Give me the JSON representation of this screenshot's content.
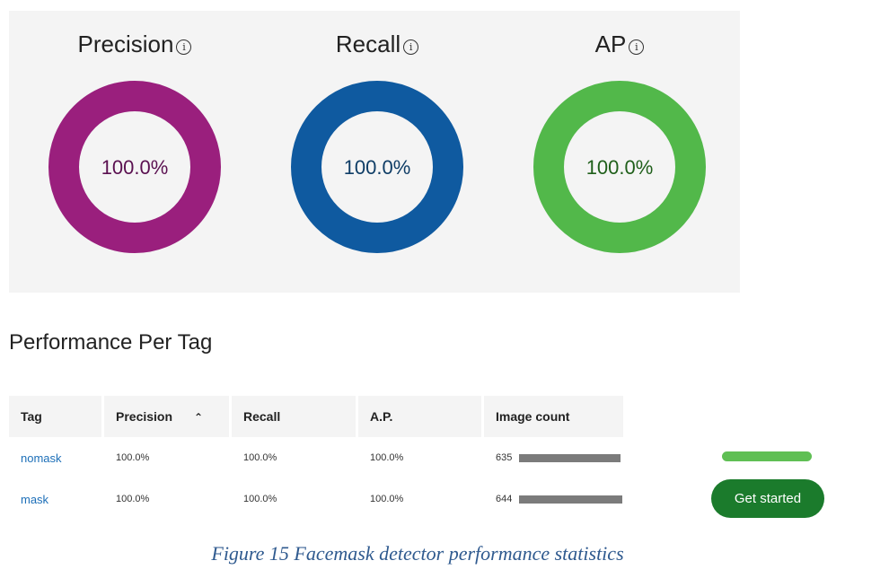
{
  "metrics": [
    {
      "title": "Precision",
      "value": "100.0%",
      "fraction": 1.0,
      "color": "#9a1f7d",
      "text_color": "#5a1050"
    },
    {
      "title": "Recall",
      "value": "100.0%",
      "fraction": 1.0,
      "color": "#0f5aa0",
      "text_color": "#0f3d66"
    },
    {
      "title": "AP",
      "value": "100.0%",
      "fraction": 1.0,
      "color": "#52b84a",
      "text_color": "#1f5f1a"
    }
  ],
  "info_icon": "info-icon",
  "section_title": "Performance Per Tag",
  "table": {
    "headers": [
      "Tag",
      "Precision",
      "Recall",
      "A.P.",
      "Image count"
    ],
    "sort_icon": "chevron-up-icon",
    "rows": [
      {
        "tag": "nomask",
        "precision": "100.0%",
        "recall": "100.0%",
        "ap": "100.0%",
        "count": "635",
        "count_value": 635
      },
      {
        "tag": "mask",
        "precision": "100.0%",
        "recall": "100.0%",
        "ap": "100.0%",
        "count": "644",
        "count_value": 644
      }
    ],
    "bar_color": "#7b7b7b"
  },
  "progress": {
    "fraction": 1.0,
    "color": "#5fbf54"
  },
  "button": {
    "label": "Get started",
    "color": "#1b7b2c"
  },
  "caption": "Figure 15 Facemask detector performance statistics"
}
